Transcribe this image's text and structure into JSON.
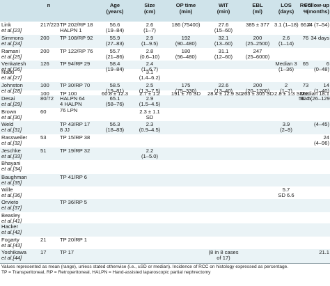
{
  "headers": [
    "",
    "n",
    "Age\n(years)",
    "Size\n(cm)",
    "OP time\n(min)",
    "WIT\n(min)",
    "EBL\n(ml)",
    "LOS\n(days)",
    "RCC\n%",
    "Follow-up\n(months)"
  ],
  "rows": [
    {
      "author": "Link ",
      "ref": "et al.[23]",
      "n": "217/223",
      "design": "TP 202/RP 18\nHALPN 1",
      "age": "56.6\n(19–84)",
      "size": "2.6\n(1–7)",
      "op": "186 (75400)",
      "wit": "27.6\n(15–60)",
      "ebl": "385 ± 377",
      "los": "3.1 (1–18)",
      "rcc": "66.4",
      "fu": "24 (7–54)"
    },
    {
      "author": "Simmons ",
      "ref": "et al.[24]",
      "n": "200",
      "design": "TP 108/RP 92",
      "age": "55.9\n(27–83)",
      "size": "2.9\n(1–9.5)",
      "op": "192\n(90–480)",
      "wit": "32.1\n(13–60)",
      "ebl": "200\n(25–2500)",
      "los": "2.6\n(1–14)",
      "rcc": "76",
      "fu": "34 days"
    },
    {
      "author": "Ramani ",
      "ref": "et al.[25]",
      "n": "200",
      "design": "TP 122/RP 76",
      "age": "55.7\n(21–86)",
      "size": "2.8\n(0.6–10)",
      "op": "180\n(56–480)",
      "wit": "31.1\n(12–60)",
      "ebl": "247\n(25–6000)",
      "los": "",
      "rcc": "",
      "fu": ""
    },
    {
      "author": "Venkatesh ",
      "ref": "et al.[26]",
      "n": "126",
      "design": "TP 94/RP 29",
      "age": "58.4\n(19–84)",
      "size": "2.4\n(1–6.7)",
      "op": "",
      "wit": "",
      "ebl": "",
      "los": "Median 3\n(1–36)",
      "rcc": "65",
      "fu": "6\n(0–48)"
    },
    {
      "author": "Nadu ",
      "ref": "et al.[27]",
      "n": "",
      "design": "",
      "age": "",
      "size": "3.1\n(1.4–6.2)",
      "op": "",
      "wit": "",
      "ebl": "",
      "los": "",
      "rcc": "",
      "fu": ""
    },
    {
      "author": "Johnston ",
      "ref": "et al.[28]",
      "n": "100",
      "design": "TP 30/RP 70",
      "age": "58.5\n(19–81)",
      "size": "2.5\n(1.3–7.5)",
      "op": "175\n(75–330)",
      "wit": "22.6\n(13–40)",
      "ebl": "200\n(20–1200)",
      "los": "2\n(1–7)",
      "rcc": "73",
      "fu": "14\n(1–40)"
    },
    {
      "author": "",
      "ref": "",
      "n": "100",
      "design": "TP 100",
      "age": "60.8 ± 12.3\nSD",
      "size": "2.7 ± 1.2\nSD",
      "op": "191 ± 76 SD",
      "wit": "28.4 ± 12.9 SD",
      "ebl": "263 ± 305 SD",
      "los": "2.8 ± 1.3 SD",
      "rcc": "62",
      "fu": "Median 18.1"
    },
    {
      "author": "Desai ",
      "ref": "et al.[29]",
      "n": "80/72",
      "design": "HALPN 64\n4 HALPN\n76 LPN",
      "age": "65.1\n(58–76)",
      "size": "2.9\n(1.5–4.5)",
      "op": "",
      "wit": "",
      "ebl": "",
      "los": "",
      "rcc": "62.5",
      "fu": "56.4 (26–129)"
    },
    {
      "author": "Brown ",
      "ref": "et al.[30]",
      "n": "60",
      "design": "",
      "age": "",
      "size": "2.3 ± 1.1\nSD",
      "op": "",
      "wit": "",
      "ebl": "",
      "los": "",
      "rcc": "",
      "fu": ""
    },
    {
      "author": "Weld ",
      "ref": "et al.[31]",
      "n": "",
      "design": "TP 43/RP 17\n8 JJ",
      "age": "56.3\n(18–83)",
      "size": "2.3\n(0.9–4.5)",
      "op": "",
      "wit": "",
      "ebl": "",
      "los": "3.9\n(2–9)",
      "rcc": "",
      "fu": "(4–45)"
    },
    {
      "author": "Rassweiler ",
      "ref": "et al.[32]",
      "n": "53",
      "design": "TP 15/RP 38",
      "age": "",
      "size": "",
      "op": "",
      "wit": "",
      "ebl": "",
      "los": "",
      "rcc": "",
      "fu": "24\n(4–96)"
    },
    {
      "author": "Jeschke ",
      "ref": "et al.[33]",
      "n": "51",
      "design": "TP 19/RP 32",
      "age": "",
      "size": "2.2\n(1–5.0)",
      "op": "",
      "wit": "",
      "ebl": "",
      "los": "",
      "rcc": "",
      "fu": ""
    },
    {
      "author": "Bhayani ",
      "ref": "et al.[34]",
      "n": "",
      "design": "",
      "age": "",
      "size": "",
      "op": "",
      "wit": "",
      "ebl": "",
      "los": "",
      "rcc": "",
      "fu": ""
    },
    {
      "author": "Baughman ",
      "ref": "et al.[35]",
      "n": "",
      "design": "TP 41/RP 6",
      "age": "",
      "size": "",
      "op": "",
      "wit": "",
      "ebl": "",
      "los": "",
      "rcc": "",
      "fu": ""
    },
    {
      "author": "Wille ",
      "ref": "et al.[36]",
      "n": "",
      "design": "",
      "age": "",
      "size": "",
      "op": "",
      "wit": "",
      "ebl": "",
      "los": "5.7\nSD 6.6",
      "rcc": "",
      "fu": ""
    },
    {
      "author": "Orvieto ",
      "ref": "et al.[37]",
      "n": "",
      "design": "TP 36/RP 5",
      "age": "",
      "size": "",
      "op": "",
      "wit": "",
      "ebl": "",
      "los": "",
      "rcc": "",
      "fu": ""
    },
    {
      "author": "Beasley ",
      "ref": "et al.[41]",
      "n": "",
      "design": "",
      "age": "",
      "size": "",
      "op": "",
      "wit": "",
      "ebl": "",
      "los": "",
      "rcc": "",
      "fu": ""
    },
    {
      "author": "Hacker ",
      "ref": "et al.[42]",
      "n": "",
      "design": "",
      "age": "",
      "size": "",
      "op": "",
      "wit": "",
      "ebl": "",
      "los": "",
      "rcc": "",
      "fu": ""
    },
    {
      "author": "Fogarty ",
      "ref": "et al.[43]",
      "n": "21",
      "design": "TP 20/RP 1",
      "age": "",
      "size": "",
      "op": "",
      "wit": "",
      "ebl": "",
      "los": "",
      "rcc": "",
      "fu": ""
    },
    {
      "author": "Yoshikawa ",
      "ref": "et al.[44]",
      "n": "17",
      "design": "TP 17",
      "age": "",
      "size": "",
      "op": "",
      "wit": "(8 in 8 cases\nof 17)",
      "ebl": "",
      "los": "",
      "rcc": "",
      "fu": "21.1"
    }
  ],
  "footnote": "Values represented as mean (range), unless stated otherwise (i.e., ±SD or median). Incidence of RCC on histology expressed as percentage.\nTP = Transperitoneal, RP = Retroperitoneal, HALPN = Hand-assisted laparoscopic partial nephrectomy",
  "colors": {
    "header_bg": "#cfe3ea",
    "row_shade": "#eaf3f6",
    "rule": "#8a9ca3"
  }
}
